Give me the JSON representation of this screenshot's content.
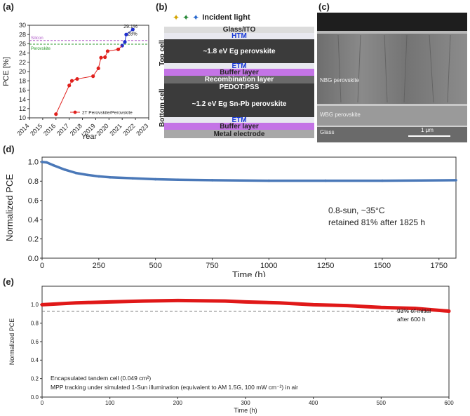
{
  "panel_labels": {
    "a": "(a)",
    "b": "(b)",
    "c": "(c)",
    "d": "(d)",
    "e": "(e)"
  },
  "colors": {
    "red_series": "#e0201c",
    "blue_series": "#1f2fcf",
    "silicon_line": "#b05cc8",
    "perovskite_line": "#2a9a2a",
    "d_series": "#4a78b8",
    "e_series": "#e01818",
    "buffer_layer": "#c474e6",
    "dark_layer": "#3b3b3b",
    "glass_ito": "#dcdcdc",
    "htm_etm_text": "#1a3bd6"
  },
  "chart_data": [
    {
      "id": "a",
      "type": "line",
      "xlabel": "Year",
      "ylabel": "PCE [%]",
      "xlim": [
        2014,
        2023
      ],
      "ylim": [
        10,
        30
      ],
      "xticks": [
        "2014",
        "2015",
        "2016",
        "2017",
        "2018",
        "2019",
        "2020",
        "2021",
        "2022",
        "2023"
      ],
      "yticks": [
        "10",
        "12",
        "14",
        "16",
        "18",
        "20",
        "22",
        "24",
        "26",
        "28",
        "30"
      ],
      "series": [
        {
          "name": "2T Perovskite/Perovskite",
          "points": [
            [
              2016.0,
              10.8
            ],
            [
              2017.0,
              17.0
            ],
            [
              2017.2,
              18.0
            ],
            [
              2017.6,
              18.4
            ],
            [
              2018.8,
              19.0
            ],
            [
              2019.2,
              20.7
            ],
            [
              2019.4,
              23.0
            ],
            [
              2019.7,
              23.1
            ],
            [
              2019.9,
              24.4
            ],
            [
              2020.7,
              24.8
            ]
          ]
        },
        {
          "name": "",
          "points": [
            [
              2021.0,
              25.6
            ],
            [
              2021.2,
              26.4
            ],
            [
              2021.3,
              28.0
            ],
            [
              2021.8,
              29.1
            ]
          ]
        }
      ],
      "reference_lines": [
        {
          "name": "Silicon",
          "y": 26.7
        },
        {
          "name": "Perovskite",
          "y": 25.9
        }
      ],
      "annotations": [
        {
          "text": "29.1%",
          "x": 2021.1,
          "y": 29.4
        },
        {
          "text": "28%",
          "x": 2021.4,
          "y": 27.8
        }
      ]
    },
    {
      "id": "d",
      "type": "line",
      "xlabel": "Time (h)",
      "ylabel": "Normalized PCE",
      "xlim": [
        0,
        1825
      ],
      "ylim": [
        0,
        1.05
      ],
      "xticks": [
        "0",
        "250",
        "500",
        "750",
        "1000",
        "1250",
        "1500",
        "1750"
      ],
      "yticks": [
        "0.0",
        "0.2",
        "0.4",
        "0.6",
        "0.8",
        "1.0"
      ],
      "series": [
        {
          "name": "",
          "points": [
            [
              0,
              1.0
            ],
            [
              20,
              0.995
            ],
            [
              50,
              0.965
            ],
            [
              100,
              0.92
            ],
            [
              150,
              0.885
            ],
            [
              200,
              0.865
            ],
            [
              250,
              0.85
            ],
            [
              300,
              0.84
            ],
            [
              400,
              0.83
            ],
            [
              500,
              0.82
            ],
            [
              600,
              0.815
            ],
            [
              750,
              0.81
            ],
            [
              1000,
              0.805
            ],
            [
              1250,
              0.805
            ],
            [
              1500,
              0.805
            ],
            [
              1825,
              0.81
            ]
          ]
        }
      ],
      "annotations": [
        {
          "text": "0.8-sun, ~35°C"
        },
        {
          "text": "retained 81% after 1825 h"
        }
      ]
    },
    {
      "id": "e",
      "type": "line",
      "xlabel": "Time (h)",
      "ylabel": "Normalized PCE",
      "xlim": [
        0,
        600
      ],
      "ylim": [
        0,
        1.2
      ],
      "xticks": [
        "0",
        "100",
        "200",
        "300",
        "400",
        "500",
        "600"
      ],
      "yticks": [
        "0.0",
        "0.2",
        "0.4",
        "0.6",
        "0.8",
        "1.0"
      ],
      "series": [
        {
          "name": "",
          "points": [
            [
              0,
              1.0
            ],
            [
              50,
              1.02
            ],
            [
              100,
              1.03
            ],
            [
              150,
              1.04
            ],
            [
              200,
              1.045
            ],
            [
              270,
              1.04
            ],
            [
              300,
              1.03
            ],
            [
              350,
              1.02
            ],
            [
              400,
              1.0
            ],
            [
              450,
              0.99
            ],
            [
              500,
              0.97
            ],
            [
              550,
              0.96
            ],
            [
              600,
              0.93
            ]
          ]
        }
      ],
      "reference_lines": [
        {
          "name": "",
          "y": 0.93
        }
      ],
      "annotations": [
        {
          "text": "93% of initial"
        },
        {
          "text": "after 600 h"
        },
        {
          "text": "Encapsulated tandem cell (0.049 cm²)"
        },
        {
          "text": "MPP tracking under simulated 1-Sun illumination (equivalent to AM 1.5G, 100 mW cm⁻²) in air"
        }
      ]
    }
  ],
  "panel_b": {
    "incident_light": "Incident light",
    "top_cell_label": "Top cell",
    "bottom_cell_label": "Bottom cell",
    "layers": [
      {
        "label": "Glass/ITO",
        "kind": "glass"
      },
      {
        "label": "HTM",
        "kind": "htm"
      },
      {
        "label": "~1.8 eV Eg perovskite",
        "kind": "dark"
      },
      {
        "label": "ETM",
        "kind": "htm"
      },
      {
        "label": "Buffer layer",
        "kind": "buffer"
      },
      {
        "label": "Recombination layer",
        "kind": "gray"
      },
      {
        "label": "PEDOT:PSS",
        "kind": "dark"
      },
      {
        "label": "~1.2 eV Eg Sn-Pb perovskite",
        "kind": "dark"
      },
      {
        "label": "ETM",
        "kind": "htm"
      },
      {
        "label": "Buffer layer",
        "kind": "buffer"
      },
      {
        "label": "Metal electrode",
        "kind": "metal"
      }
    ]
  },
  "panel_c": {
    "nbg_label": "NBG perovskite",
    "wbg_label": "WBG perovskite",
    "glass_label": "Glass",
    "scale_label": "1 μm"
  }
}
